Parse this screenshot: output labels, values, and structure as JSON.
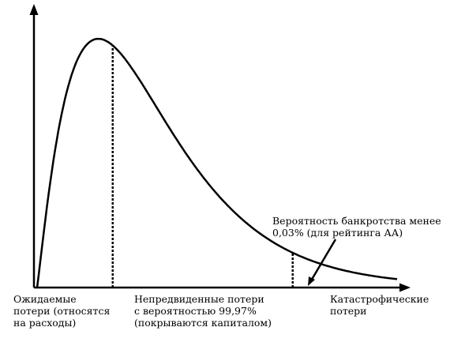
{
  "chart_data": {
    "type": "line",
    "title": "",
    "xlabel": "",
    "ylabel": "",
    "grid": false,
    "legend": "none",
    "curve": {
      "kind": "loss-distribution",
      "x_start": 0.0,
      "x_end": 1.0,
      "peak_x": 0.17,
      "peak_y": 1.0
    },
    "markers": [
      {
        "name": "expected-loss-boundary",
        "x": 0.21,
        "style": "dotted"
      },
      {
        "name": "capital-boundary-99-97",
        "x": 0.71,
        "style": "dotted"
      }
    ],
    "annotations": {
      "expected_loss": [
        "Ожидаемые",
        "потери (относятся",
        "на расходы)"
      ],
      "unexpected_loss": [
        "Непредвиденные потери",
        "с вероятностью 99,97%",
        "(покрываются капиталом)"
      ],
      "catastrophic_loss": [
        "Катастрофические",
        "потери"
      ],
      "bankruptcy_probability": [
        "Вероятность банкротства менее",
        "0,03% (для рейтинга АА)"
      ]
    },
    "colors": {
      "line": "#000000",
      "background": "#ffffff"
    }
  }
}
